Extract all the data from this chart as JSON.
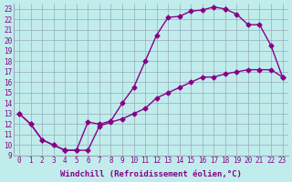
{
  "xlabel": "Windchill (Refroidissement éolien,°C)",
  "xlim": [
    -0.5,
    23.5
  ],
  "ylim": [
    9,
    23.5
  ],
  "xticks": [
    0,
    1,
    2,
    3,
    4,
    5,
    6,
    7,
    8,
    9,
    10,
    11,
    12,
    13,
    14,
    15,
    16,
    17,
    18,
    19,
    20,
    21,
    22,
    23
  ],
  "yticks": [
    9,
    10,
    11,
    12,
    13,
    14,
    15,
    16,
    17,
    18,
    19,
    20,
    21,
    22,
    23
  ],
  "bg_color": "#c0ecec",
  "line_color": "#880088",
  "grid_color": "#99aabb",
  "line1_x": [
    0,
    1,
    2,
    3,
    4,
    5,
    6,
    7,
    8,
    9,
    10,
    11,
    12,
    13,
    14,
    15,
    16,
    17,
    18
  ],
  "line1_y": [
    13.0,
    12.0,
    10.5,
    10.0,
    9.5,
    9.5,
    12.2,
    12.0,
    12.3,
    14.0,
    15.5,
    18.0,
    20.5,
    22.2,
    22.3,
    22.8,
    22.9,
    23.2,
    23.0
  ],
  "line2_x": [
    0,
    1,
    2,
    3,
    4,
    4,
    5,
    6,
    7,
    8,
    9,
    10,
    11,
    12,
    13,
    14,
    15,
    16,
    17,
    18,
    19,
    20,
    21,
    22,
    23
  ],
  "line2_y": [
    13.0,
    12.0,
    10.5,
    10.0,
    9.5,
    9.5,
    9.5,
    9.5,
    11.8,
    12.2,
    12.5,
    13.0,
    13.5,
    14.5,
    15.0,
    15.5,
    16.0,
    16.5,
    16.5,
    16.8,
    17.0,
    17.2,
    17.2,
    17.2,
    16.5
  ],
  "line3_x": [
    18,
    19,
    20,
    21,
    22,
    23
  ],
  "line3_y": [
    23.0,
    22.5,
    21.5,
    21.5,
    19.5,
    16.5
  ],
  "marker": "D",
  "markersize": 2.5,
  "linewidth": 1.0,
  "tick_fontsize": 5.5,
  "label_fontsize": 6.5
}
